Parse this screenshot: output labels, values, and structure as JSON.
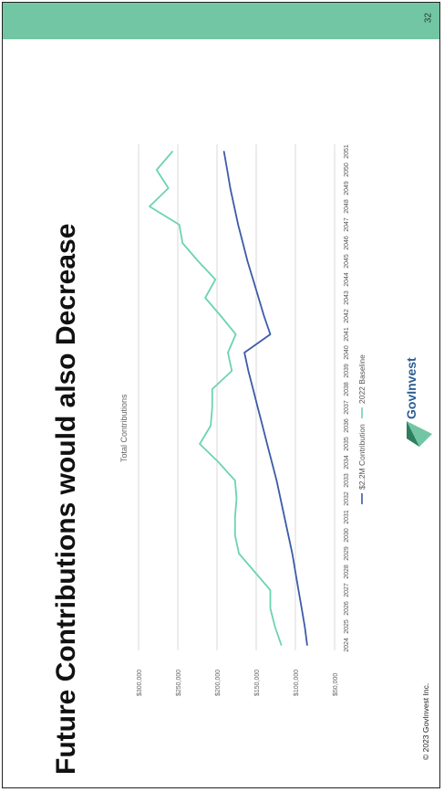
{
  "slide": {
    "title": "Future Contributions would also Decrease",
    "page_number": "32",
    "copyright": "© 2023 GovInvest Inc.",
    "brand_name": "GovInvest",
    "accent_color": "#73c6a4"
  },
  "chart_data": {
    "type": "line",
    "title": "Total Contributions",
    "x": [
      "2024",
      "2025",
      "2026",
      "2027",
      "2028",
      "2029",
      "2030",
      "2031",
      "2032",
      "2033",
      "2034",
      "2035",
      "2036",
      "2037",
      "2038",
      "2039",
      "2040",
      "2041",
      "2042",
      "2043",
      "2044",
      "2045",
      "2046",
      "2047",
      "2048",
      "2049",
      "2050",
      "2051"
    ],
    "y_ticks": [
      "$50,000",
      "$100,000",
      "$150,000",
      "$200,000",
      "$250,000",
      "$300,000"
    ],
    "ylim": [
      50000,
      300000
    ],
    "grid": true,
    "legend_position": "bottom",
    "series": [
      {
        "name": "$2.2M Contribution",
        "color": "#3b5ca8",
        "values": [
          85000,
          88000,
          92000,
          96000,
          100000,
          104000,
          109000,
          114000,
          119000,
          124000,
          130000,
          136000,
          142000,
          148000,
          154000,
          160000,
          165000,
          132000,
          140000,
          147000,
          154000,
          161000,
          167000,
          173000,
          178000,
          183000,
          187000,
          191000
        ]
      },
      {
        "name": "2022 Baseline",
        "color": "#6cd3b2",
        "values": [
          118000,
          126000,
          132000,
          132000,
          152000,
          172000,
          177000,
          177000,
          175000,
          177000,
          198000,
          222000,
          208000,
          206000,
          206000,
          181000,
          186000,
          176000,
          195000,
          215000,
          202000,
          224000,
          244000,
          248000,
          286000,
          262000,
          277000,
          257000
        ]
      }
    ]
  }
}
